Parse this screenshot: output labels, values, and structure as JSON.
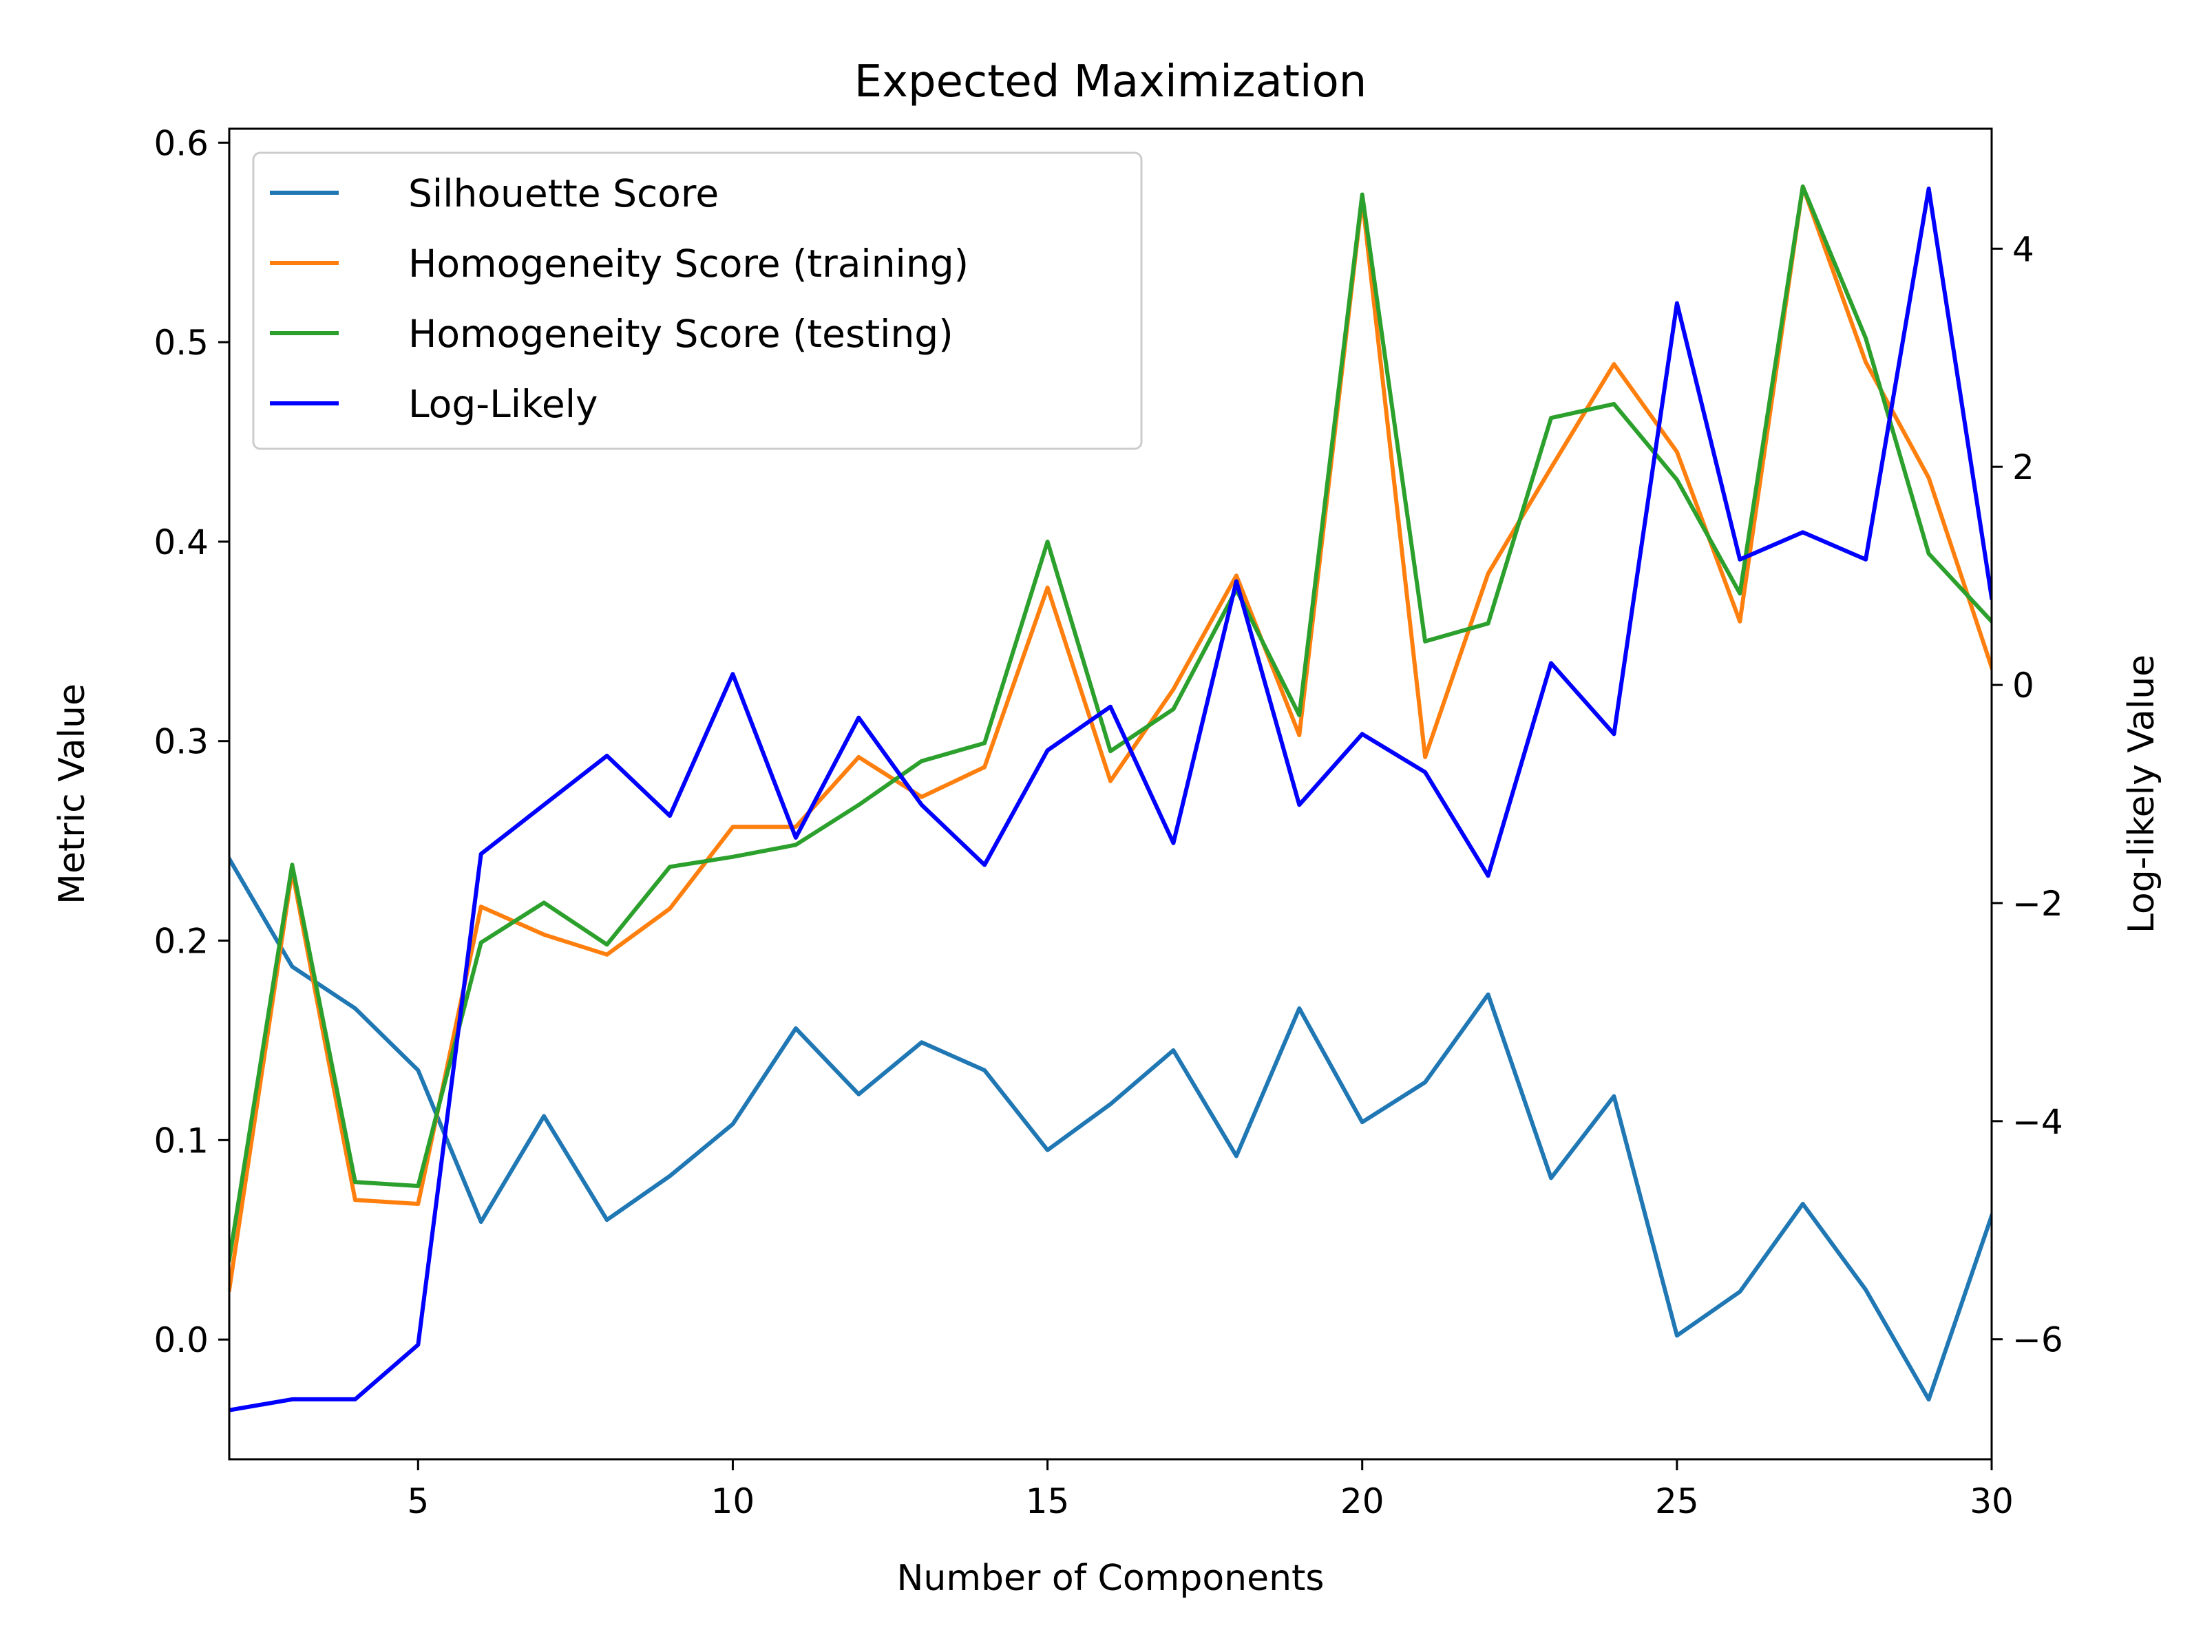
{
  "chart_data": {
    "type": "line",
    "title": "Expected Maximization",
    "xlabel": "Number of Components",
    "ylabel": "Metric Value",
    "y2label": "Log-likely Value",
    "xlim": [
      2,
      30
    ],
    "ylim": [
      -0.06,
      0.607
    ],
    "y2lim": [
      -7.1,
      5.1
    ],
    "xticks": [
      5,
      10,
      15,
      20,
      25,
      30
    ],
    "yticks": [
      0.0,
      0.1,
      0.2,
      0.3,
      0.4,
      0.5,
      0.6
    ],
    "yticklabels": [
      "0.0",
      "0.1",
      "0.2",
      "0.3",
      "0.4",
      "0.5",
      "0.6"
    ],
    "y2ticks": [
      -6,
      -4,
      -2,
      0,
      2,
      4
    ],
    "y2ticklabels": [
      "−6",
      "−4",
      "−2",
      "0",
      "2",
      "4"
    ],
    "grid": false,
    "legend_position": "top-left",
    "x": [
      2,
      3,
      4,
      5,
      6,
      7,
      8,
      9,
      10,
      11,
      12,
      13,
      14,
      15,
      16,
      17,
      18,
      19,
      20,
      21,
      22,
      23,
      24,
      25,
      26,
      27,
      28,
      29,
      30
    ],
    "series": [
      {
        "name": "Silhouette Score",
        "axis": "left",
        "color": "#1f77b4",
        "values": [
          0.241,
          0.187,
          0.166,
          0.135,
          0.059,
          0.112,
          0.06,
          0.082,
          0.108,
          0.156,
          0.123,
          0.149,
          0.135,
          0.095,
          0.118,
          0.145,
          0.092,
          0.166,
          0.109,
          0.129,
          0.173,
          0.081,
          0.122,
          0.002,
          0.024,
          0.068,
          0.025,
          -0.03,
          0.062
        ]
      },
      {
        "name": "Homogeneity Score (training)",
        "axis": "left",
        "color": "#ff7f0e",
        "values": [
          0.025,
          0.235,
          0.07,
          0.068,
          0.217,
          0.203,
          0.193,
          0.216,
          0.257,
          0.257,
          0.292,
          0.272,
          0.287,
          0.377,
          0.28,
          0.326,
          0.383,
          0.303,
          0.572,
          0.292,
          0.384,
          0.437,
          0.489,
          0.445,
          0.36,
          0.578,
          0.49,
          0.432,
          0.337
        ]
      },
      {
        "name": "Homogeneity Score (testing)",
        "axis": "left",
        "color": "#2ca02c",
        "values": [
          0.04,
          0.238,
          0.079,
          0.077,
          0.199,
          0.219,
          0.198,
          0.237,
          0.242,
          0.248,
          0.268,
          0.29,
          0.299,
          0.4,
          0.295,
          0.316,
          0.376,
          0.313,
          0.574,
          0.35,
          0.359,
          0.462,
          0.469,
          0.431,
          0.374,
          0.578,
          0.502,
          0.394,
          0.36
        ]
      },
      {
        "name": "Log-Likely",
        "axis": "right",
        "color": "#0000ff",
        "values": [
          -6.65,
          -6.55,
          -6.55,
          -6.05,
          -1.55,
          -1.1,
          -0.65,
          -1.2,
          0.1,
          -1.4,
          -0.3,
          -1.1,
          -1.65,
          -0.6,
          -0.2,
          -1.45,
          0.95,
          -1.1,
          -0.45,
          -0.8,
          -1.75,
          0.2,
          -0.45,
          3.5,
          1.15,
          1.4,
          1.15,
          4.55,
          0.8
        ]
      }
    ]
  }
}
